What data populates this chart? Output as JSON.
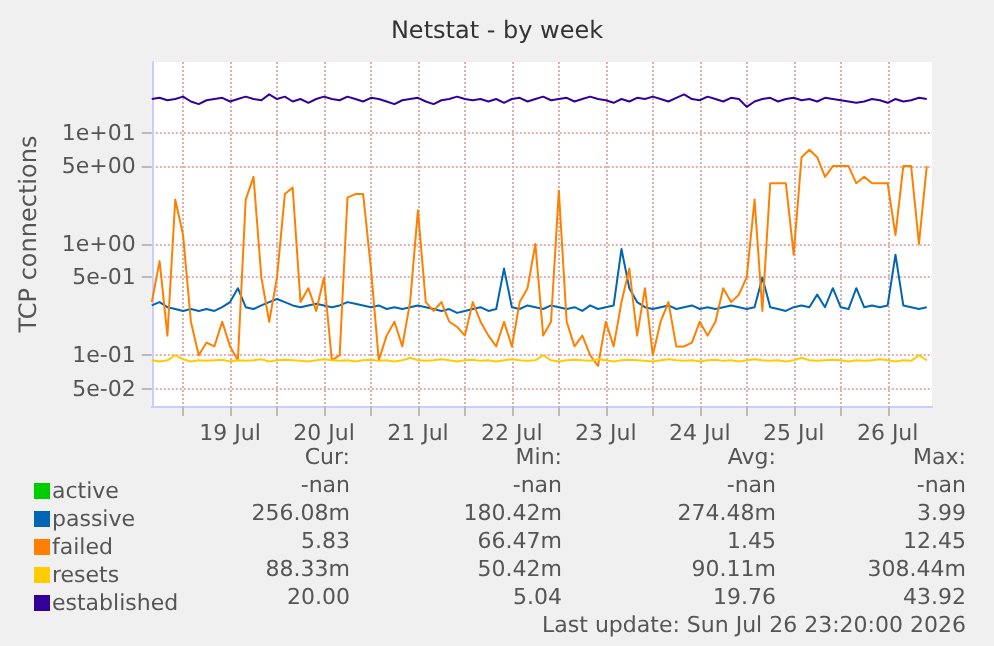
{
  "chart_data": {
    "type": "line",
    "title": "Netstat - by week",
    "ylabel": "TCP connections",
    "log": true,
    "grid": true,
    "legend": "bottom left",
    "ylim": [
      0.035,
      43
    ],
    "yticks": [
      {
        "value": 0.05,
        "label": "5e-02"
      },
      {
        "value": 0.1,
        "label": "1e-01"
      },
      {
        "value": 0.5,
        "label": "5e-01"
      },
      {
        "value": 1,
        "label": "1e+00"
      },
      {
        "value": 5,
        "label": "5e+00"
      },
      {
        "value": 10,
        "label": "1e+01"
      }
    ],
    "xlim": [
      "2026-07-18T16:00",
      "2026-07-26T23:20"
    ],
    "xticks": [
      {
        "value": "2026-07-19T00:00",
        "label": null
      },
      {
        "value": "2026-07-19T12:00",
        "label": "19 Jul"
      },
      {
        "value": "2026-07-20T00:00",
        "label": null
      },
      {
        "value": "2026-07-20T12:00",
        "label": "20 Jul"
      },
      {
        "value": "2026-07-21T00:00",
        "label": null
      },
      {
        "value": "2026-07-21T12:00",
        "label": "21 Jul"
      },
      {
        "value": "2026-07-22T00:00",
        "label": null
      },
      {
        "value": "2026-07-22T12:00",
        "label": "22 Jul"
      },
      {
        "value": "2026-07-23T00:00",
        "label": null
      },
      {
        "value": "2026-07-23T12:00",
        "label": "23 Jul"
      },
      {
        "value": "2026-07-24T00:00",
        "label": null
      },
      {
        "value": "2026-07-24T12:00",
        "label": "24 Jul"
      },
      {
        "value": "2026-07-25T00:00",
        "label": null
      },
      {
        "value": "2026-07-25T12:00",
        "label": "25 Jul"
      },
      {
        "value": "2026-07-26T00:00",
        "label": null
      },
      {
        "value": "2026-07-26T12:00",
        "label": "26 Jul"
      }
    ],
    "x": [
      "2026-07-18T16:00",
      "2026-07-18T18:00",
      "2026-07-18T20:00",
      "2026-07-18T22:00",
      "2026-07-19T00:00",
      "2026-07-19T02:00",
      "2026-07-19T04:00",
      "2026-07-19T06:00",
      "2026-07-19T08:00",
      "2026-07-19T10:00",
      "2026-07-19T12:00",
      "2026-07-19T14:00",
      "2026-07-19T16:00",
      "2026-07-19T18:00",
      "2026-07-19T20:00",
      "2026-07-19T22:00",
      "2026-07-20T00:00",
      "2026-07-20T02:00",
      "2026-07-20T04:00",
      "2026-07-20T06:00",
      "2026-07-20T08:00",
      "2026-07-20T10:00",
      "2026-07-20T12:00",
      "2026-07-20T14:00",
      "2026-07-20T16:00",
      "2026-07-20T18:00",
      "2026-07-20T20:00",
      "2026-07-20T22:00",
      "2026-07-21T00:00",
      "2026-07-21T02:00",
      "2026-07-21T04:00",
      "2026-07-21T06:00",
      "2026-07-21T08:00",
      "2026-07-21T10:00",
      "2026-07-21T12:00",
      "2026-07-21T14:00",
      "2026-07-21T16:00",
      "2026-07-21T18:00",
      "2026-07-21T20:00",
      "2026-07-21T22:00",
      "2026-07-22T00:00",
      "2026-07-22T02:00",
      "2026-07-22T04:00",
      "2026-07-22T06:00",
      "2026-07-22T08:00",
      "2026-07-22T10:00",
      "2026-07-22T12:00",
      "2026-07-22T14:00",
      "2026-07-22T16:00",
      "2026-07-22T18:00",
      "2026-07-22T20:00",
      "2026-07-22T22:00",
      "2026-07-23T00:00",
      "2026-07-23T02:00",
      "2026-07-23T04:00",
      "2026-07-23T06:00",
      "2026-07-23T08:00",
      "2026-07-23T10:00",
      "2026-07-23T12:00",
      "2026-07-23T14:00",
      "2026-07-23T16:00",
      "2026-07-23T18:00",
      "2026-07-23T20:00",
      "2026-07-23T22:00",
      "2026-07-24T00:00",
      "2026-07-24T02:00",
      "2026-07-24T04:00",
      "2026-07-24T06:00",
      "2026-07-24T08:00",
      "2026-07-24T10:00",
      "2026-07-24T12:00",
      "2026-07-24T14:00",
      "2026-07-24T16:00",
      "2026-07-24T18:00",
      "2026-07-24T20:00",
      "2026-07-24T22:00",
      "2026-07-25T00:00",
      "2026-07-25T02:00",
      "2026-07-25T04:00",
      "2026-07-25T06:00",
      "2026-07-25T08:00",
      "2026-07-25T10:00",
      "2026-07-25T12:00",
      "2026-07-25T14:00",
      "2026-07-25T16:00",
      "2026-07-25T18:00",
      "2026-07-25T20:00",
      "2026-07-25T22:00",
      "2026-07-26T00:00",
      "2026-07-26T02:00",
      "2026-07-26T04:00",
      "2026-07-26T06:00",
      "2026-07-26T08:00",
      "2026-07-26T10:00",
      "2026-07-26T12:00",
      "2026-07-26T14:00",
      "2026-07-26T16:00",
      "2026-07-26T18:00",
      "2026-07-26T20:00",
      "2026-07-26T22:00"
    ],
    "series": [
      {
        "name": "active",
        "color": "#00cc00",
        "values": [
          null,
          null,
          null,
          null,
          null,
          null,
          null,
          null,
          null,
          null,
          null,
          null,
          null,
          null,
          null,
          null,
          null,
          null,
          null,
          null,
          null,
          null,
          null,
          null,
          null,
          null,
          null,
          null,
          null,
          null,
          null,
          null,
          null,
          null,
          null,
          null,
          null,
          null,
          null,
          null,
          null,
          null,
          null,
          null,
          null,
          null,
          null,
          null,
          null,
          null,
          null,
          null,
          null,
          null,
          null,
          null,
          null,
          null,
          null,
          null,
          null,
          null,
          null,
          null,
          null,
          null,
          null,
          null,
          null,
          null,
          null,
          null,
          null,
          null,
          null,
          null,
          null,
          null,
          null,
          null,
          null,
          null,
          null,
          null,
          null,
          null,
          null,
          null,
          null,
          null,
          null,
          null,
          null,
          null,
          null,
          null,
          null,
          null,
          null,
          null
        ]
      },
      {
        "name": "passive",
        "color": "#0066b3",
        "values": [
          0.28,
          0.3,
          0.27,
          0.26,
          0.25,
          0.26,
          0.25,
          0.26,
          0.25,
          0.27,
          0.3,
          0.4,
          0.27,
          0.26,
          0.28,
          0.3,
          0.32,
          0.3,
          0.28,
          0.27,
          0.28,
          0.29,
          0.28,
          0.27,
          0.28,
          0.3,
          0.29,
          0.28,
          0.27,
          0.28,
          0.26,
          0.27,
          0.26,
          0.27,
          0.28,
          0.27,
          0.26,
          0.25,
          0.26,
          0.24,
          0.25,
          0.26,
          0.27,
          0.25,
          0.26,
          0.6,
          0.27,
          0.26,
          0.28,
          0.27,
          0.26,
          0.28,
          0.27,
          0.26,
          0.27,
          0.25,
          0.28,
          0.26,
          0.27,
          0.28,
          0.9,
          0.4,
          0.3,
          0.27,
          0.26,
          0.27,
          0.28,
          0.26,
          0.27,
          0.28,
          0.26,
          0.27,
          0.26,
          0.27,
          0.28,
          0.27,
          0.26,
          0.27,
          0.5,
          0.27,
          0.26,
          0.25,
          0.27,
          0.28,
          0.27,
          0.35,
          0.27,
          0.4,
          0.27,
          0.26,
          0.4,
          0.27,
          0.28,
          0.27,
          0.28,
          0.8,
          0.28,
          0.27,
          0.26,
          0.27
        ]
      },
      {
        "name": "failed",
        "color": "#ff8000",
        "values": [
          0.3,
          0.7,
          0.15,
          2.5,
          1.2,
          0.2,
          0.1,
          0.13,
          0.12,
          0.2,
          0.12,
          0.09,
          2.5,
          4.0,
          0.5,
          0.2,
          0.5,
          2.8,
          3.2,
          0.3,
          0.4,
          0.25,
          0.5,
          0.09,
          0.1,
          2.6,
          2.8,
          2.8,
          0.6,
          0.09,
          0.15,
          0.2,
          0.12,
          0.3,
          2.0,
          0.3,
          0.25,
          0.3,
          0.2,
          0.18,
          0.15,
          0.3,
          0.2,
          0.15,
          0.12,
          0.2,
          0.12,
          0.3,
          0.4,
          1.0,
          0.15,
          0.2,
          3.0,
          0.2,
          0.12,
          0.15,
          0.1,
          0.08,
          0.2,
          0.12,
          0.3,
          0.6,
          0.15,
          0.4,
          0.1,
          0.2,
          0.3,
          0.12,
          0.12,
          0.13,
          0.2,
          0.15,
          0.2,
          0.4,
          0.3,
          0.35,
          0.5,
          2.5,
          0.25,
          3.5,
          3.5,
          3.5,
          0.8,
          6.0,
          7.0,
          6.0,
          4.0,
          5.0,
          5.0,
          5.0,
          3.5,
          4.0,
          3.5,
          3.5,
          3.5,
          1.2,
          5.0,
          5.0,
          1.0,
          5.0
        ]
      },
      {
        "name": "resets",
        "color": "#ffcc00",
        "values": [
          0.09,
          0.088,
          0.09,
          0.1,
          0.092,
          0.088,
          0.09,
          0.089,
          0.09,
          0.091,
          0.088,
          0.09,
          0.089,
          0.09,
          0.092,
          0.088,
          0.09,
          0.091,
          0.09,
          0.089,
          0.088,
          0.09,
          0.092,
          0.09,
          0.089,
          0.09,
          0.088,
          0.09,
          0.091,
          0.089,
          0.09,
          0.088,
          0.09,
          0.095,
          0.09,
          0.089,
          0.09,
          0.092,
          0.09,
          0.088,
          0.09,
          0.091,
          0.089,
          0.09,
          0.088,
          0.09,
          0.092,
          0.09,
          0.089,
          0.09,
          0.1,
          0.09,
          0.088,
          0.09,
          0.091,
          0.09,
          0.089,
          0.092,
          0.09,
          0.088,
          0.09,
          0.091,
          0.09,
          0.089,
          0.088,
          0.09,
          0.092,
          0.09,
          0.089,
          0.09,
          0.088,
          0.09,
          0.091,
          0.089,
          0.09,
          0.088,
          0.09,
          0.092,
          0.09,
          0.089,
          0.09,
          0.088,
          0.09,
          0.095,
          0.09,
          0.089,
          0.09,
          0.091,
          0.09,
          0.088,
          0.09,
          0.089,
          0.09,
          0.092,
          0.09,
          0.088,
          0.09,
          0.089,
          0.1,
          0.09
        ]
      },
      {
        "name": "established",
        "color": "#330099",
        "values": [
          20,
          20.5,
          19.5,
          20,
          21,
          19,
          18,
          19.5,
          20,
          20.5,
          19,
          20,
          21,
          20,
          19.5,
          22,
          20,
          21,
          19,
          20,
          18.5,
          20,
          21,
          20,
          19.5,
          21,
          20,
          19,
          20.5,
          20,
          19,
          18,
          19.5,
          20,
          20.5,
          19,
          18,
          19.5,
          20,
          21,
          20,
          19.5,
          20,
          19,
          20,
          18.5,
          20,
          20.5,
          19,
          20,
          21,
          19.5,
          20,
          20.5,
          19,
          20,
          21,
          20,
          19.5,
          18.5,
          20,
          19,
          20.5,
          20,
          21,
          20,
          19,
          20.5,
          22,
          20,
          19.5,
          21,
          20,
          19,
          20.5,
          20,
          17,
          19,
          20,
          20.5,
          19,
          20,
          20.5,
          19.5,
          20,
          19,
          20.5,
          20,
          19.5,
          19,
          18.5,
          19,
          20,
          19.5,
          18.5,
          20,
          19,
          19.5,
          20.5,
          20
        ]
      }
    ],
    "annotations": [
      "Cur:",
      "Min:",
      "Avg:",
      "Max:",
      "-nan",
      "-nan",
      "-nan",
      "-nan",
      "256.08m",
      "180.42m",
      "274.48m",
      "3.99",
      "5.83",
      "66.47m",
      "1.45",
      "12.45",
      "88.33m",
      "50.42m",
      "90.11m",
      "308.44m",
      "20.00",
      "5.04",
      "19.76",
      "43.92",
      "Last update: Sun Jul 26 23:20:00 2026"
    ]
  }
}
